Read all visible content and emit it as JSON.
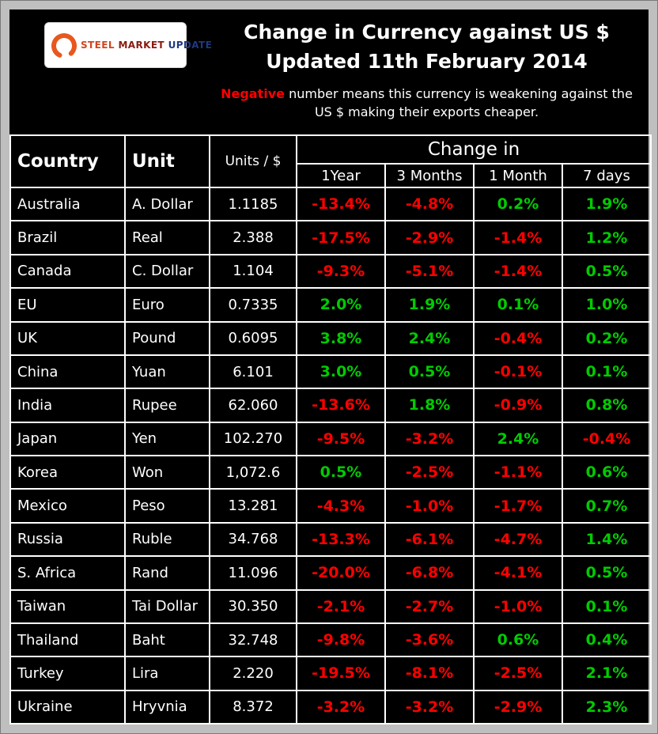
{
  "colors": {
    "negative": "#FF0000",
    "positive": "#00CC00",
    "grid": "#FFFFFF",
    "swoosh": "#E8581E"
  },
  "logo": {
    "steel": "STEEL",
    "market": "MARKET",
    "update": "UPDATE"
  },
  "header": {
    "title_line1": "Change in Currency against US $",
    "title_line2": "Updated 11th February 2014",
    "note_word": "Negative",
    "note_line1_rest": " number means this currency is weakening against the",
    "note_line2": "US $ making their exports cheaper."
  },
  "table": {
    "col_country": "Country",
    "col_unit": "Unit",
    "col_units_per_usd": "Units / $",
    "col_change_in": "Change in",
    "periods": [
      "1Year",
      "3 Months",
      "1 Month",
      "7 days"
    ]
  },
  "chart_data": {
    "type": "table",
    "title": "Change in Currency against US $",
    "subtitle": "Updated 11th February 2014",
    "note": "Negative number means this currency is weakening against the US $ making their exports cheaper.",
    "columns": [
      "Country",
      "Unit",
      "Units / $",
      "1Year",
      "3 Months",
      "1 Month",
      "7 days"
    ],
    "rows": [
      [
        "Australia",
        "A. Dollar",
        "1.1185",
        "-13.4%",
        "-4.8%",
        "0.2%",
        "1.9%"
      ],
      [
        "Brazil",
        "Real",
        "2.388",
        "-17.5%",
        "-2.9%",
        "-1.4%",
        "1.2%"
      ],
      [
        "Canada",
        "C. Dollar",
        "1.104",
        "-9.3%",
        "-5.1%",
        "-1.4%",
        "0.5%"
      ],
      [
        "EU",
        "Euro",
        "0.7335",
        "2.0%",
        "1.9%",
        "0.1%",
        "1.0%"
      ],
      [
        "UK",
        "Pound",
        "0.6095",
        "3.8%",
        "2.4%",
        "-0.4%",
        "0.2%"
      ],
      [
        "China",
        "Yuan",
        "6.101",
        "3.0%",
        "0.5%",
        "-0.1%",
        "0.1%"
      ],
      [
        "India",
        "Rupee",
        "62.060",
        "-13.6%",
        "1.8%",
        "-0.9%",
        "0.8%"
      ],
      [
        "Japan",
        "Yen",
        "102.270",
        "-9.5%",
        "-3.2%",
        "2.4%",
        "-0.4%"
      ],
      [
        "Korea",
        "Won",
        "1,072.6",
        "0.5%",
        "-2.5%",
        "-1.1%",
        "0.6%"
      ],
      [
        "Mexico",
        "Peso",
        "13.281",
        "-4.3%",
        "-1.0%",
        "-1.7%",
        "0.7%"
      ],
      [
        "Russia",
        "Ruble",
        "34.768",
        "-13.3%",
        "-6.1%",
        "-4.7%",
        "1.4%"
      ],
      [
        "S. Africa",
        "Rand",
        "11.096",
        "-20.0%",
        "-6.8%",
        "-4.1%",
        "0.5%"
      ],
      [
        "Taiwan",
        "Tai Dollar",
        "30.350",
        "-2.1%",
        "-2.7%",
        "-1.0%",
        "0.1%"
      ],
      [
        "Thailand",
        "Baht",
        "32.748",
        "-9.8%",
        "-3.6%",
        "0.6%",
        "0.4%"
      ],
      [
        "Turkey",
        "Lira",
        "2.220",
        "-19.5%",
        "-8.1%",
        "-2.5%",
        "2.1%"
      ],
      [
        "Ukraine",
        "Hryvnia",
        "8.372",
        "-3.2%",
        "-3.2%",
        "-2.9%",
        "2.3%"
      ]
    ]
  }
}
